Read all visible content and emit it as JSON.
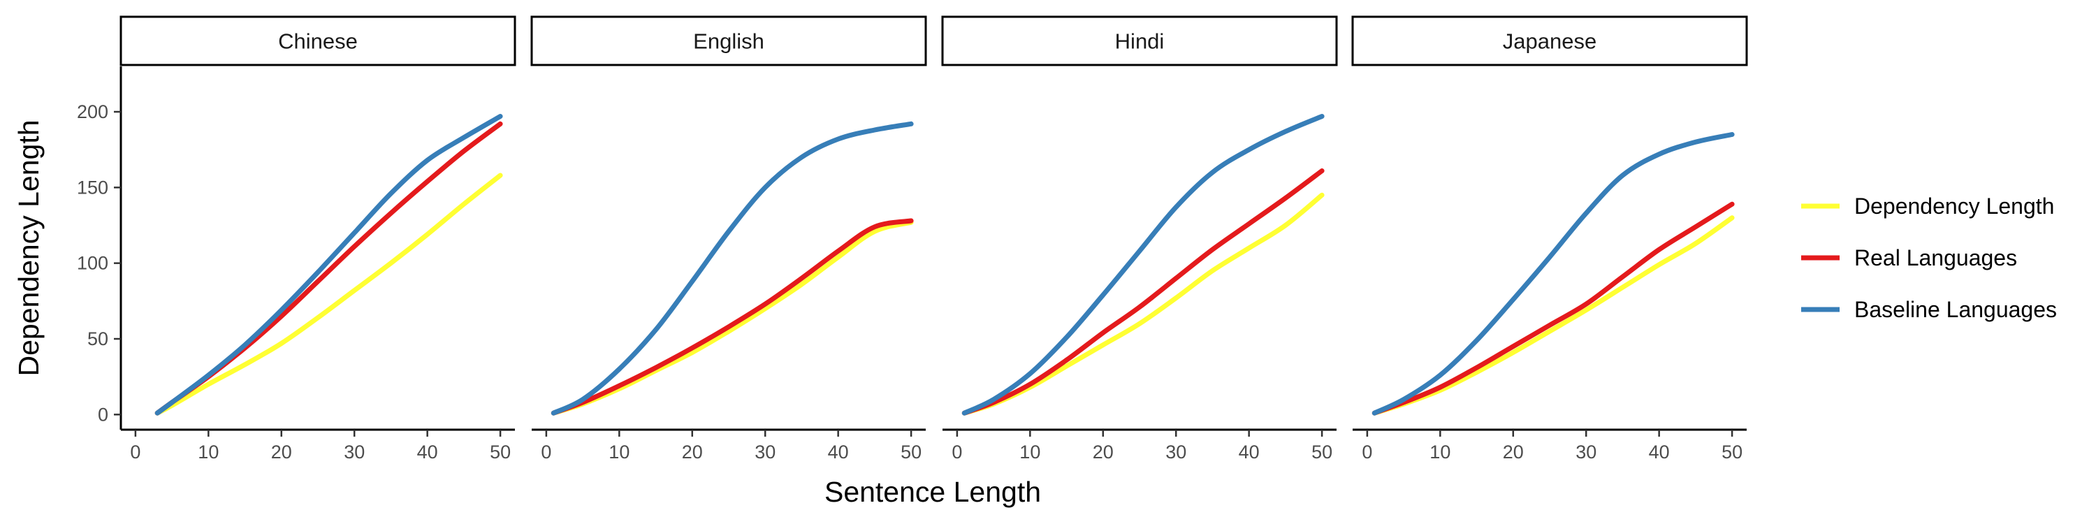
{
  "chart_data": {
    "type": "line",
    "xlabel": "Sentence Length",
    "ylabel": "Dependency Length",
    "xlim": [
      -2,
      52
    ],
    "ylim": [
      -10,
      230
    ],
    "xticks": [
      "0",
      "10",
      "20",
      "30",
      "40",
      "50"
    ],
    "yticks": [
      "0",
      "50",
      "100",
      "150",
      "200"
    ],
    "grid": false,
    "legend_position": "right",
    "legend": [
      {
        "name": "Dependency Length",
        "color": "#ffff33"
      },
      {
        "name": "Real Languages",
        "color": "#e41a1c"
      },
      {
        "name": "Baseline Languages",
        "color": "#377eb8"
      }
    ],
    "panels": [
      {
        "label": "Chinese",
        "series": [
          {
            "name": "Dependency Length",
            "x": [
              3,
              5,
              10,
              15,
              20,
              25,
              30,
              35,
              40,
              45,
              50
            ],
            "y": [
              1,
              6,
              20,
              33,
              47,
              64,
              82,
              100,
              119,
              139,
              158
            ]
          },
          {
            "name": "Real Languages",
            "x": [
              3,
              5,
              10,
              15,
              20,
              25,
              30,
              35,
              40,
              45,
              50
            ],
            "y": [
              1,
              8,
              25,
              44,
              65,
              88,
              111,
              133,
              154,
              174,
              192
            ]
          },
          {
            "name": "Baseline Languages",
            "x": [
              3,
              5,
              10,
              15,
              20,
              25,
              30,
              35,
              40,
              45,
              50
            ],
            "y": [
              1,
              8,
              26,
              46,
              69,
              94,
              120,
              146,
              168,
              183,
              197
            ]
          }
        ]
      },
      {
        "label": "English",
        "series": [
          {
            "name": "Dependency Length",
            "x": [
              1,
              5,
              10,
              15,
              20,
              25,
              30,
              35,
              40,
              45,
              50
            ],
            "y": [
              1,
              7,
              17,
              29,
              41,
              55,
              70,
              86,
              104,
              121,
              127
            ]
          },
          {
            "name": "Real Languages",
            "x": [
              1,
              5,
              10,
              15,
              20,
              25,
              30,
              35,
              40,
              45,
              50
            ],
            "y": [
              1,
              8,
              19,
              31,
              44,
              58,
              73,
              90,
              108,
              124,
              128
            ]
          },
          {
            "name": "Baseline Languages",
            "x": [
              1,
              5,
              10,
              15,
              20,
              25,
              30,
              35,
              40,
              45,
              50
            ],
            "y": [
              1,
              10,
              30,
              56,
              88,
              121,
              150,
              170,
              182,
              188,
              192
            ]
          }
        ]
      },
      {
        "label": "Hindi",
        "series": [
          {
            "name": "Dependency Length",
            "x": [
              1,
              5,
              10,
              15,
              20,
              25,
              30,
              35,
              40,
              45,
              50
            ],
            "y": [
              1,
              7,
              18,
              32,
              46,
              60,
              77,
              95,
              110,
              125,
              145
            ]
          },
          {
            "name": "Real Languages",
            "x": [
              1,
              5,
              10,
              15,
              20,
              25,
              30,
              35,
              40,
              45,
              50
            ],
            "y": [
              1,
              8,
              20,
              36,
              54,
              71,
              90,
              109,
              126,
              143,
              161
            ]
          },
          {
            "name": "Baseline Languages",
            "x": [
              1,
              5,
              10,
              15,
              20,
              25,
              30,
              35,
              40,
              45,
              50
            ],
            "y": [
              1,
              10,
              27,
              51,
              79,
              108,
              137,
              160,
              175,
              187,
              197
            ]
          }
        ]
      },
      {
        "label": "Japanese",
        "series": [
          {
            "name": "Dependency Length",
            "x": [
              1,
              5,
              10,
              15,
              20,
              25,
              30,
              35,
              40,
              45,
              50
            ],
            "y": [
              1,
              7,
              16,
              28,
              41,
              55,
              69,
              84,
              99,
              113,
              130
            ]
          },
          {
            "name": "Real Languages",
            "x": [
              1,
              5,
              10,
              15,
              20,
              25,
              30,
              35,
              40,
              45,
              50
            ],
            "y": [
              1,
              8,
              18,
              31,
              45,
              59,
              73,
              91,
              109,
              124,
              139
            ]
          },
          {
            "name": "Baseline Languages",
            "x": [
              1,
              5,
              10,
              15,
              20,
              25,
              30,
              35,
              40,
              45,
              50
            ],
            "y": [
              1,
              10,
              26,
              49,
              76,
              104,
              133,
              158,
              172,
              180,
              185
            ]
          }
        ]
      }
    ]
  }
}
